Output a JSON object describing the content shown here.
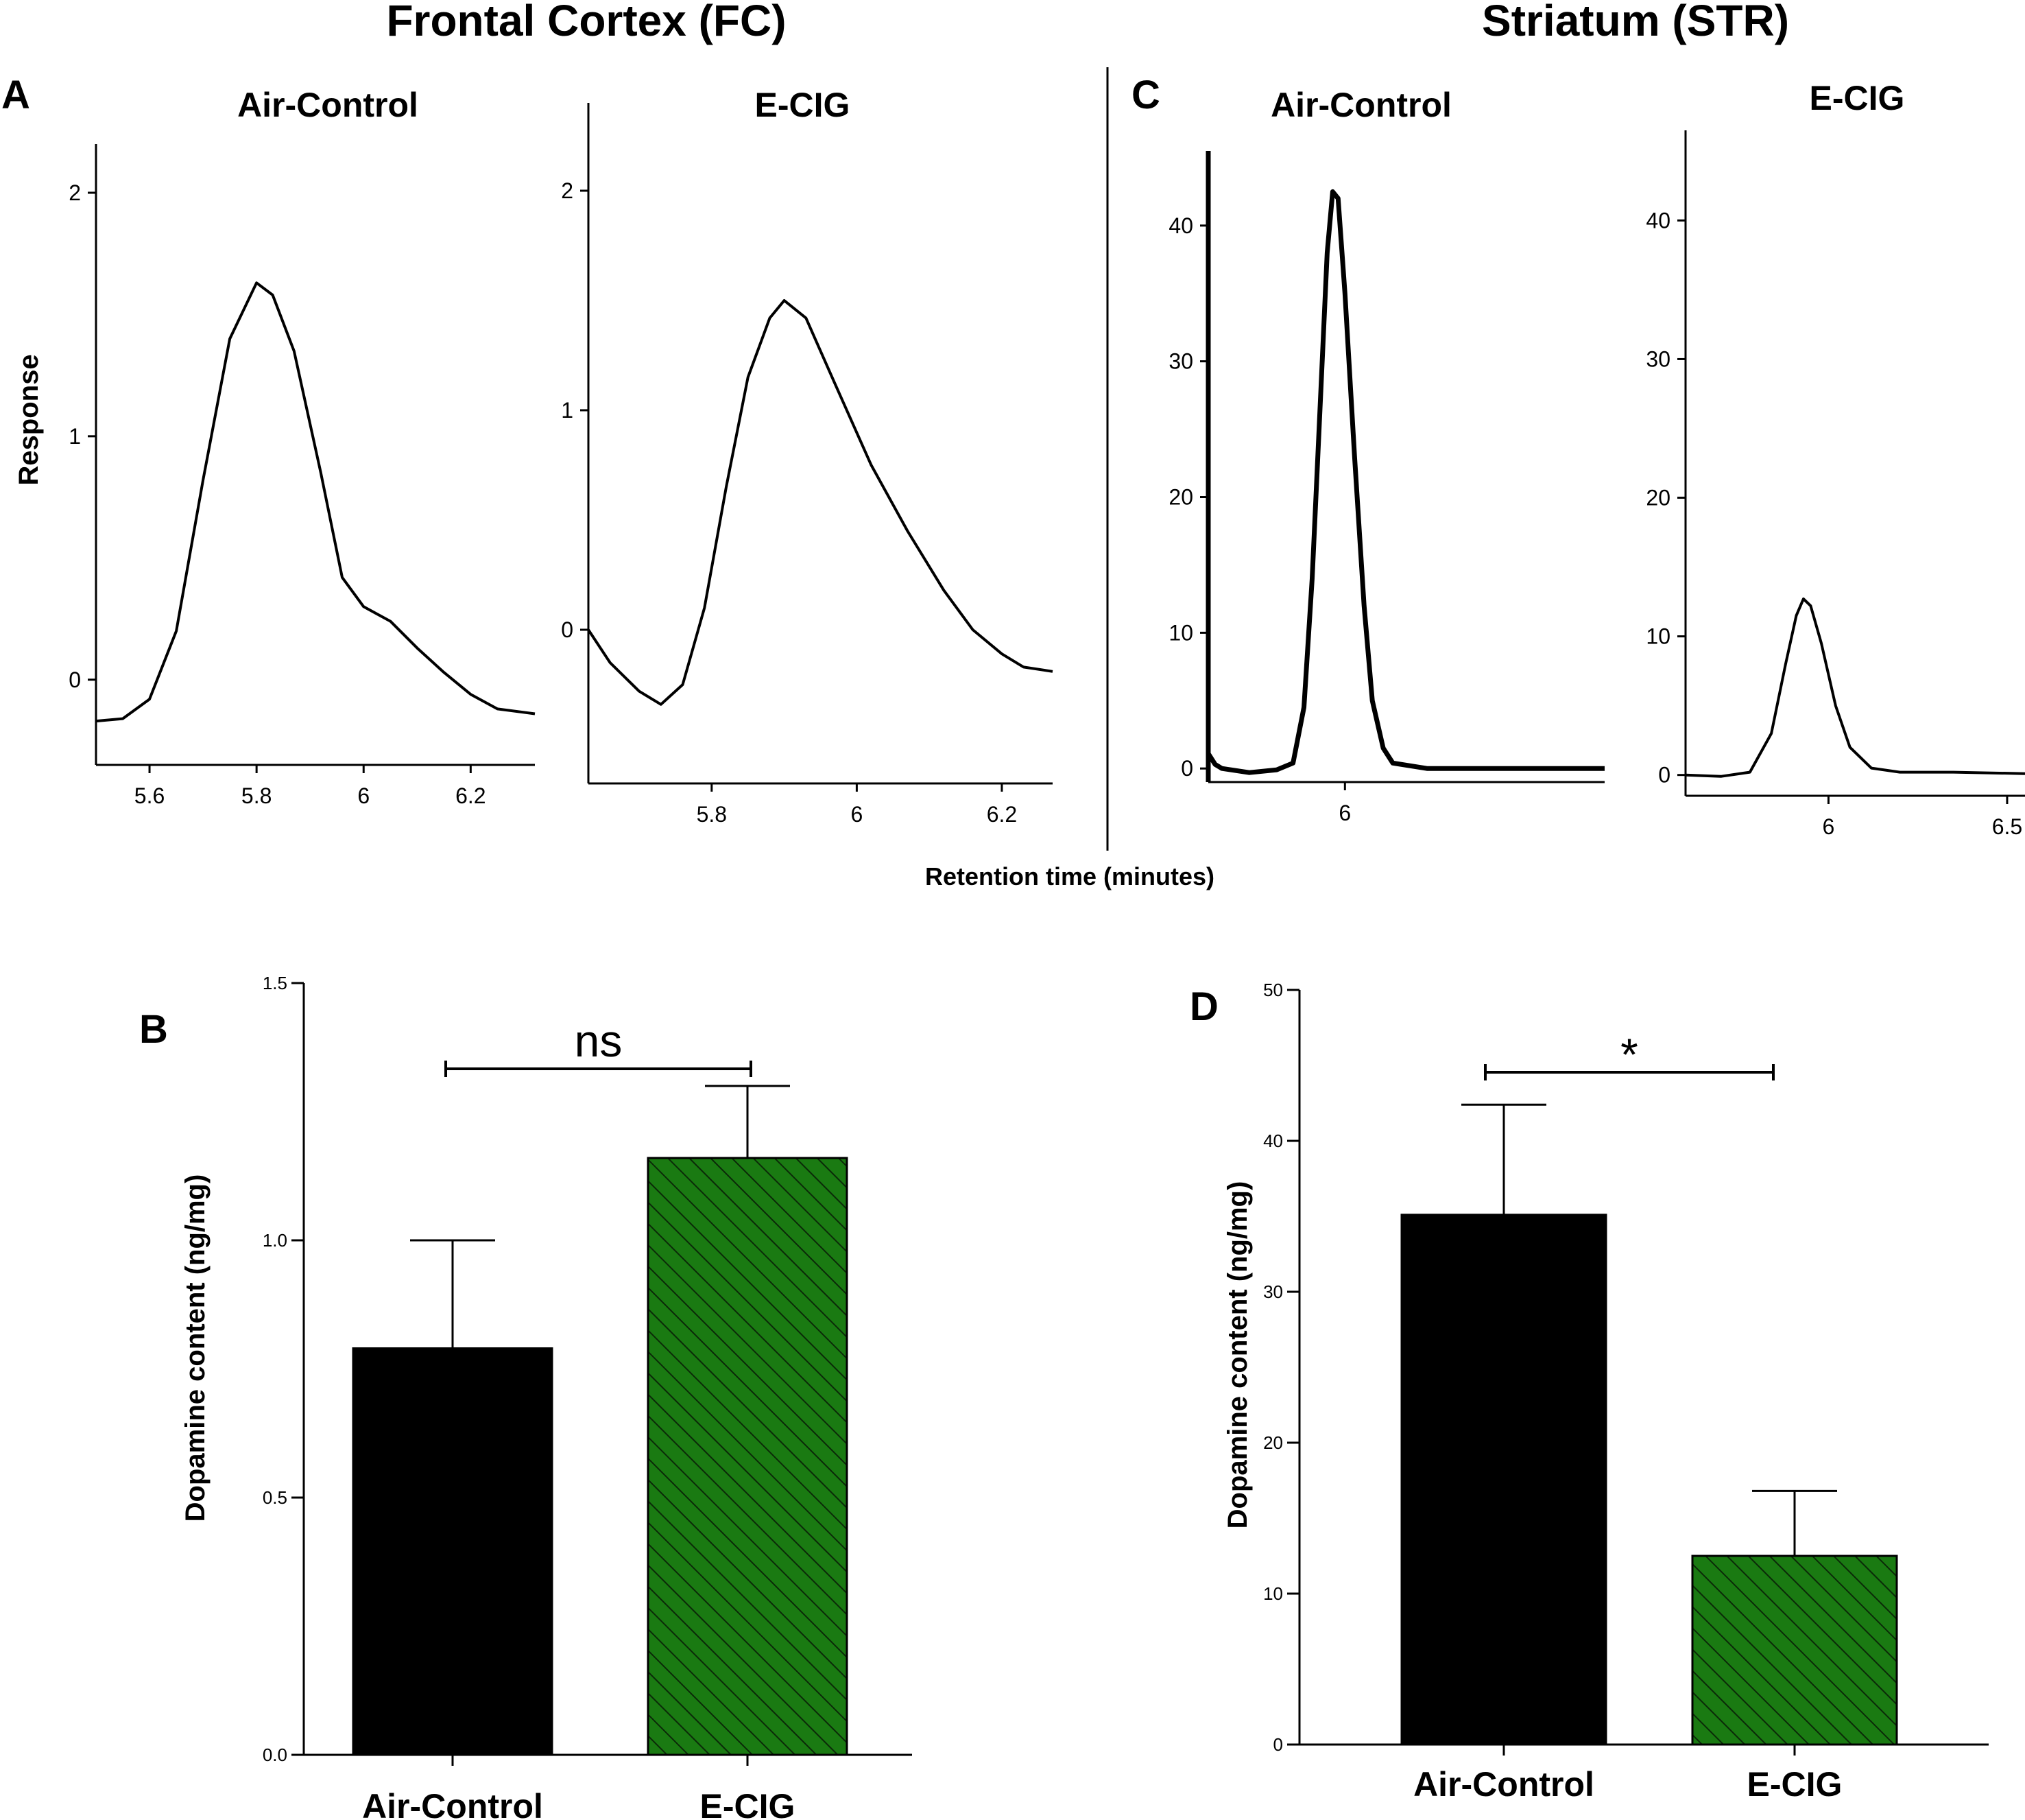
{
  "sections": {
    "fc_title": "Frontal Cortex (FC)",
    "str_title": "Striatum (STR)"
  },
  "shared_xlabel": "Retention time (minutes)",
  "panel_letters": {
    "A": "A",
    "B": "B",
    "C": "C",
    "D": "D"
  },
  "colors": {
    "control_bar": "#000000",
    "ecig_bar": "#1a7a12",
    "hatch": "#0b2a08",
    "line": "#000000"
  },
  "chart_data": [
    {
      "id": "A1",
      "panel": "A",
      "type": "line",
      "title": "Air-Control",
      "ylabel": "Response",
      "xlabel": "",
      "xlim": [
        5.5,
        6.32
      ],
      "ylim": [
        -0.35,
        2.2
      ],
      "x_ticks": [
        5.6,
        5.8,
        6,
        6.2
      ],
      "x_tick_labels": [
        "5.6",
        "5.8",
        "6",
        "6.2"
      ],
      "y_ticks": [
        0,
        1,
        2
      ],
      "y_tick_labels": [
        "0",
        "1",
        "2"
      ],
      "points": [
        [
          5.5,
          -0.17
        ],
        [
          5.55,
          -0.16
        ],
        [
          5.6,
          -0.08
        ],
        [
          5.65,
          0.2
        ],
        [
          5.7,
          0.82
        ],
        [
          5.75,
          1.4
        ],
        [
          5.8,
          1.63
        ],
        [
          5.83,
          1.58
        ],
        [
          5.87,
          1.35
        ],
        [
          5.92,
          0.85
        ],
        [
          5.96,
          0.42
        ],
        [
          6.0,
          0.3
        ],
        [
          6.05,
          0.24
        ],
        [
          6.1,
          0.13
        ],
        [
          6.15,
          0.03
        ],
        [
          6.2,
          -0.06
        ],
        [
          6.25,
          -0.12
        ],
        [
          6.32,
          -0.14
        ]
      ]
    },
    {
      "id": "A2",
      "panel": "A",
      "type": "line",
      "title": "E-CIG",
      "ylabel": "",
      "xlabel": "",
      "xlim": [
        5.63,
        6.27
      ],
      "ylim": [
        -0.7,
        2.4
      ],
      "x_ticks": [
        5.8,
        6,
        6.2
      ],
      "x_tick_labels": [
        "5.8",
        "6",
        "6.2"
      ],
      "y_ticks": [
        0,
        1,
        2
      ],
      "y_tick_labels": [
        "0",
        "1",
        "2"
      ],
      "points": [
        [
          5.63,
          0.0
        ],
        [
          5.66,
          -0.15
        ],
        [
          5.7,
          -0.28
        ],
        [
          5.73,
          -0.34
        ],
        [
          5.76,
          -0.25
        ],
        [
          5.79,
          0.1
        ],
        [
          5.82,
          0.65
        ],
        [
          5.85,
          1.15
        ],
        [
          5.88,
          1.42
        ],
        [
          5.9,
          1.5
        ],
        [
          5.93,
          1.42
        ],
        [
          5.97,
          1.12
        ],
        [
          6.02,
          0.75
        ],
        [
          6.07,
          0.45
        ],
        [
          6.12,
          0.18
        ],
        [
          6.16,
          0.0
        ],
        [
          6.2,
          -0.11
        ],
        [
          6.23,
          -0.17
        ],
        [
          6.27,
          -0.19
        ]
      ]
    },
    {
      "id": "C1",
      "panel": "C",
      "type": "line",
      "title": "Air-Control",
      "ylabel": "",
      "xlabel": "",
      "xlim": [
        5.0,
        7.9
      ],
      "ylim": [
        -1.0,
        45.5
      ],
      "x_ticks": [
        6
      ],
      "x_tick_labels": [
        "6"
      ],
      "y_ticks": [
        0,
        10,
        20,
        30,
        40
      ],
      "y_tick_labels": [
        "0",
        "10",
        "20",
        "30",
        "40"
      ],
      "points": [
        [
          5.0,
          1.1
        ],
        [
          5.05,
          0.3
        ],
        [
          5.1,
          0.0
        ],
        [
          5.3,
          -0.3
        ],
        [
          5.5,
          -0.1
        ],
        [
          5.62,
          0.4
        ],
        [
          5.7,
          4.5
        ],
        [
          5.76,
          14.0
        ],
        [
          5.82,
          27.0
        ],
        [
          5.87,
          38.0
        ],
        [
          5.91,
          42.5
        ],
        [
          5.95,
          42.0
        ],
        [
          6.0,
          35.0
        ],
        [
          6.07,
          23.0
        ],
        [
          6.14,
          12.0
        ],
        [
          6.2,
          5.0
        ],
        [
          6.28,
          1.5
        ],
        [
          6.35,
          0.4
        ],
        [
          6.6,
          0.0
        ],
        [
          7.9,
          0.0
        ]
      ]
    },
    {
      "id": "C2",
      "panel": "C",
      "type": "line",
      "title": "E-CIG",
      "ylabel": "",
      "xlabel": "",
      "xlim": [
        5.6,
        6.55
      ],
      "ylim": [
        -1.5,
        46.5
      ],
      "x_ticks": [
        6,
        6.5
      ],
      "x_tick_labels": [
        "6",
        "6.5"
      ],
      "y_ticks": [
        0,
        10,
        20,
        30,
        40
      ],
      "y_tick_labels": [
        "0",
        "10",
        "20",
        "30",
        "40"
      ],
      "points": [
        [
          5.6,
          0.0
        ],
        [
          5.7,
          -0.1
        ],
        [
          5.78,
          0.2
        ],
        [
          5.84,
          3.0
        ],
        [
          5.88,
          8.0
        ],
        [
          5.91,
          11.5
        ],
        [
          5.93,
          12.7
        ],
        [
          5.95,
          12.2
        ],
        [
          5.98,
          9.5
        ],
        [
          6.02,
          5.0
        ],
        [
          6.06,
          2.0
        ],
        [
          6.12,
          0.5
        ],
        [
          6.2,
          0.2
        ],
        [
          6.35,
          0.2
        ],
        [
          6.55,
          0.1
        ]
      ]
    },
    {
      "id": "B",
      "panel": "B",
      "type": "bar",
      "title": "",
      "xlabel": "",
      "ylabel": "Dopamine content  (ng/mg)",
      "categories": [
        "Air-Control",
        "E-CIG"
      ],
      "values": [
        0.79,
        1.16
      ],
      "errors": [
        0.21,
        0.14
      ],
      "ylim": [
        0,
        1.5
      ],
      "y_ticks": [
        0,
        0.5,
        1.0,
        1.5
      ],
      "y_tick_labels": [
        "0.0",
        "0.5",
        "1.0",
        "1.5"
      ],
      "significance": "ns"
    },
    {
      "id": "D",
      "panel": "D",
      "type": "bar",
      "title": "",
      "xlabel": "",
      "ylabel": "Dopamine  content  (ng/mg)",
      "categories": [
        "Air-Control",
        "E-CIG"
      ],
      "values": [
        35.1,
        12.5
      ],
      "errors": [
        7.3,
        4.3
      ],
      "ylim": [
        0,
        50
      ],
      "y_ticks": [
        0,
        10,
        20,
        30,
        40,
        50
      ],
      "y_tick_labels": [
        "0",
        "10",
        "20",
        "30",
        "40",
        "50"
      ],
      "significance": "*"
    }
  ]
}
